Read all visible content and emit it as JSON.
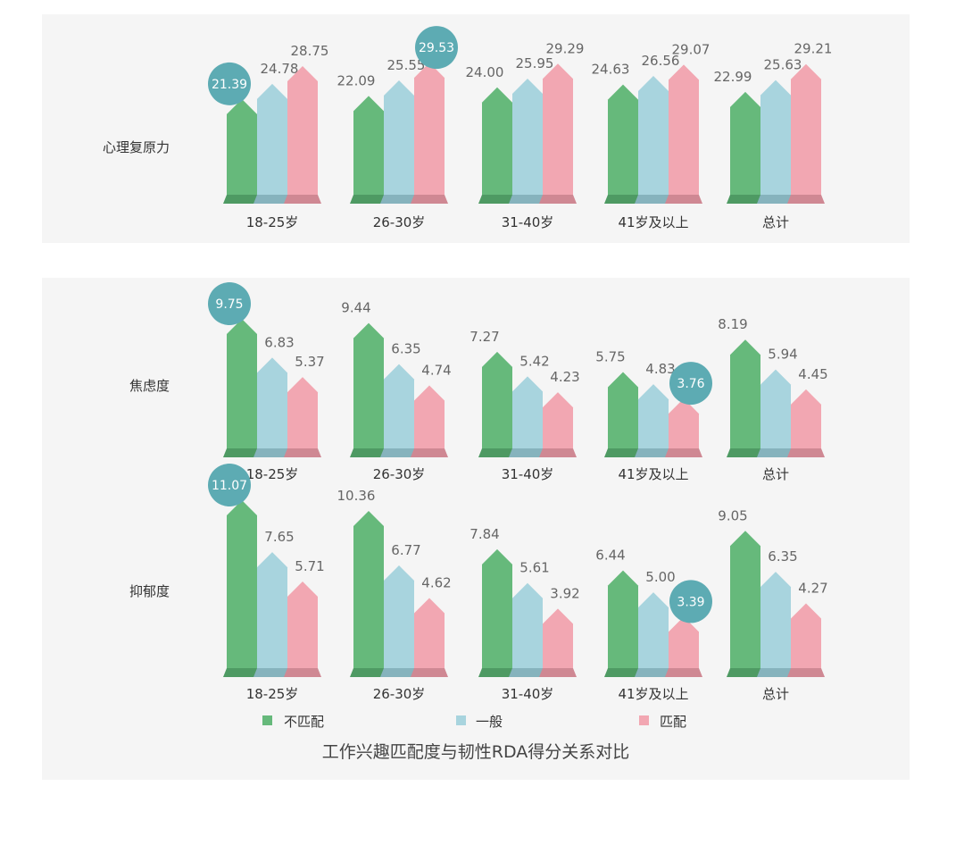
{
  "colors": {
    "no_match": "#66b97b",
    "no_match_dark": "#4e9a63",
    "general": "#a8d4de",
    "general_dark": "#86b3bd",
    "match": "#f2a7b2",
    "match_dark": "#cf8893",
    "highlight": "#5dabb3",
    "panel_bg": "#f5f5f5"
  },
  "chart_data": {
    "type": "bar",
    "title": "工作兴趣匹配度与韧性RDA得分关系对比",
    "categories": [
      "18-25岁",
      "26-30岁",
      "31-40岁",
      "41岁及以上",
      "总计"
    ],
    "legend": [
      "不匹配",
      "一般",
      "匹配"
    ],
    "legend_position": "bottom",
    "groups": [
      {
        "label": "心理复原力",
        "series": [
          {
            "name": "不匹配",
            "values": [
              21.39,
              22.09,
              24.0,
              24.63,
              22.99
            ]
          },
          {
            "name": "一般",
            "values": [
              24.78,
              25.55,
              25.95,
              26.56,
              25.63
            ]
          },
          {
            "name": "匹配",
            "values": [
              28.75,
              29.53,
              29.29,
              29.07,
              29.21
            ]
          }
        ],
        "highlights": [
          {
            "series": 0,
            "category": 0
          },
          {
            "series": 2,
            "category": 1
          }
        ]
      },
      {
        "label": "焦虑度",
        "series": [
          {
            "name": "不匹配",
            "values": [
              9.75,
              9.44,
              7.27,
              5.75,
              8.19
            ]
          },
          {
            "name": "一般",
            "values": [
              6.83,
              6.35,
              5.42,
              4.83,
              5.94
            ]
          },
          {
            "name": "匹配",
            "values": [
              5.37,
              4.74,
              4.23,
              3.76,
              4.45
            ]
          }
        ],
        "highlights": [
          {
            "series": 0,
            "category": 0
          },
          {
            "series": 2,
            "category": 3
          }
        ]
      },
      {
        "label": "抑郁度",
        "series": [
          {
            "name": "不匹配",
            "values": [
              11.07,
              10.36,
              7.84,
              6.44,
              9.05
            ]
          },
          {
            "name": "一般",
            "values": [
              7.65,
              6.77,
              5.61,
              5.0,
              6.35
            ]
          },
          {
            "name": "匹配",
            "values": [
              5.71,
              4.62,
              3.92,
              3.39,
              4.27
            ]
          }
        ],
        "highlights": [
          {
            "series": 0,
            "category": 0
          },
          {
            "series": 2,
            "category": 3
          }
        ]
      }
    ]
  }
}
